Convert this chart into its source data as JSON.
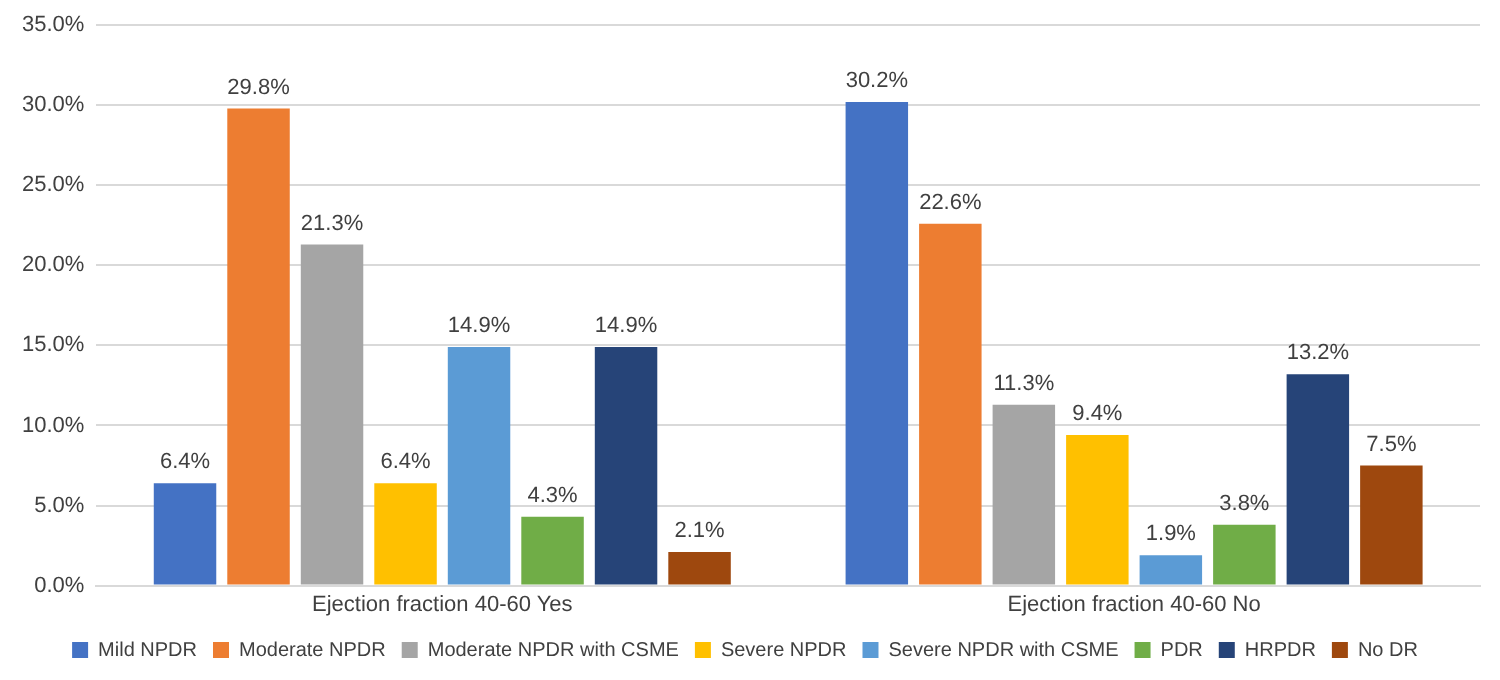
{
  "chart_data": {
    "type": "bar",
    "categories": [
      "Ejection fraction 40-60 Yes",
      "Ejection fraction 40-60 No"
    ],
    "series": [
      {
        "name": "Mild NPDR",
        "color": "#4472c4",
        "values": [
          6.4,
          30.2
        ],
        "value_labels": [
          "6.4%",
          "30.2%"
        ]
      },
      {
        "name": "Moderate NPDR",
        "color": "#ed7d31",
        "values": [
          29.8,
          22.6
        ],
        "value_labels": [
          "29.8%",
          "22.6%"
        ]
      },
      {
        "name": "Moderate NPDR with CSME",
        "color": "#a5a5a5",
        "values": [
          21.3,
          11.3
        ],
        "value_labels": [
          "21.3%",
          "11.3%"
        ]
      },
      {
        "name": "Severe NPDR",
        "color": "#ffc000",
        "values": [
          6.4,
          9.4
        ],
        "value_labels": [
          "6.4%",
          "9.4%"
        ]
      },
      {
        "name": "Severe NPDR with CSME",
        "color": "#5b9bd5",
        "values": [
          14.9,
          1.9
        ],
        "value_labels": [
          "14.9%",
          "1.9%"
        ]
      },
      {
        "name": "PDR",
        "color": "#70ad47",
        "values": [
          4.3,
          3.8
        ],
        "value_labels": [
          "4.3%",
          "3.8%"
        ]
      },
      {
        "name": "HRPDR",
        "color": "#264478",
        "values": [
          14.9,
          13.2
        ],
        "value_labels": [
          "14.9%",
          "13.2%"
        ]
      },
      {
        "name": "No DR",
        "color": "#9e480e",
        "values": [
          2.1,
          7.5
        ],
        "value_labels": [
          "2.1%",
          "7.5%"
        ]
      }
    ],
    "ylim": [
      0,
      35
    ],
    "yticks": [
      {
        "value": 0,
        "label": "0.0%"
      },
      {
        "value": 5,
        "label": "5.0%"
      },
      {
        "value": 10,
        "label": "10.0%"
      },
      {
        "value": 15,
        "label": "15.0%"
      },
      {
        "value": 20,
        "label": "20.0%"
      },
      {
        "value": 25,
        "label": "25.0%"
      },
      {
        "value": 30,
        "label": "30.0%"
      },
      {
        "value": 35,
        "label": "35.0%"
      }
    ],
    "grid": "y",
    "legend": "bottom"
  }
}
